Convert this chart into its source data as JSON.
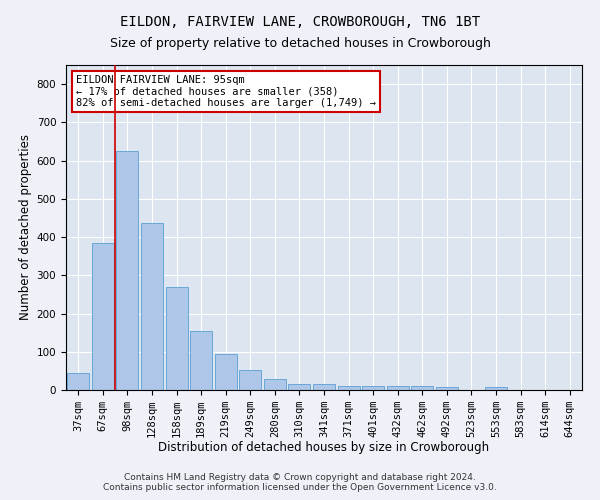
{
  "title": "EILDON, FAIRVIEW LANE, CROWBOROUGH, TN6 1BT",
  "subtitle": "Size of property relative to detached houses in Crowborough",
  "xlabel": "Distribution of detached houses by size in Crowborough",
  "ylabel": "Number of detached properties",
  "categories": [
    "37sqm",
    "67sqm",
    "98sqm",
    "128sqm",
    "158sqm",
    "189sqm",
    "219sqm",
    "249sqm",
    "280sqm",
    "310sqm",
    "341sqm",
    "371sqm",
    "401sqm",
    "432sqm",
    "462sqm",
    "492sqm",
    "523sqm",
    "553sqm",
    "583sqm",
    "614sqm",
    "644sqm"
  ],
  "values": [
    45,
    385,
    625,
    437,
    270,
    155,
    95,
    52,
    28,
    15,
    15,
    10,
    10,
    10,
    10,
    7,
    0,
    7,
    0,
    0,
    0
  ],
  "bar_color": "#aec6e8",
  "bar_edge_color": "#5a9fd4",
  "vline_x": 1.5,
  "vline_color": "#cc0000",
  "annotation_text": "EILDON FAIRVIEW LANE: 95sqm\n← 17% of detached houses are smaller (358)\n82% of semi-detached houses are larger (1,749) →",
  "annotation_box_color": "#ffffff",
  "annotation_box_edge_color": "#cc0000",
  "ylim": [
    0,
    850
  ],
  "yticks": [
    0,
    100,
    200,
    300,
    400,
    500,
    600,
    700,
    800
  ],
  "footer": "Contains HM Land Registry data © Crown copyright and database right 2024.\nContains public sector information licensed under the Open Government Licence v3.0.",
  "background_color": "#eef2f8",
  "plot_bg_color": "#dde5f0",
  "title_fontsize": 10,
  "subtitle_fontsize": 9,
  "xlabel_fontsize": 8.5,
  "ylabel_fontsize": 8.5,
  "footer_fontsize": 6.5,
  "tick_fontsize": 7.5,
  "annot_fontsize": 7.5
}
